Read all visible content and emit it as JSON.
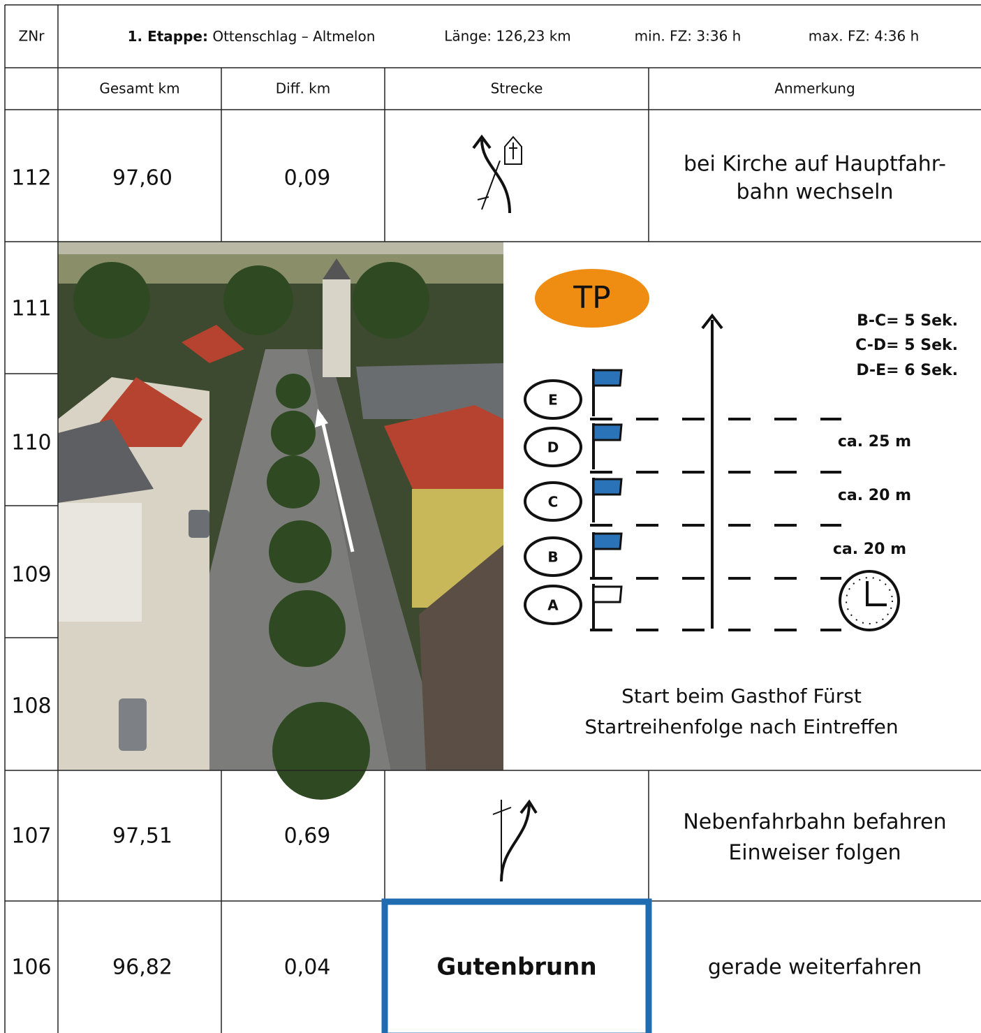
{
  "header": {
    "znr": "ZNr",
    "stage_label": "1. Etappe:",
    "stage_route": "Ottenschlag – Altmelon",
    "length": "Länge: 126,23 km",
    "min_fz": "min. FZ: 3:36 h",
    "max_fz": "max. FZ: 4:36 h"
  },
  "columns": [
    "Gesamt km",
    "Diff. km",
    "Strecke",
    "Anmerkung"
  ],
  "rows": [
    {
      "znr": "112",
      "total_km": "97,60",
      "diff_km": "0,09",
      "note": [
        "bei Kirche auf Hauptfahr-",
        "bahn wechseln"
      ]
    },
    {
      "znr": "107",
      "total_km": "97,51",
      "diff_km": "0,69",
      "note": [
        "Nebenfahrbahn befahren",
        "Einweiser folgen"
      ]
    },
    {
      "znr": "106",
      "total_km": "96,82",
      "diff_km": "0,04",
      "route": "Gutenbrunn",
      "note": [
        "gerade weiterfahren"
      ]
    }
  ],
  "photo_rows": [
    "111",
    "110",
    "109",
    "108"
  ],
  "diagram": {
    "badge": "TP",
    "flags": [
      "E",
      "D",
      "C",
      "B",
      "A"
    ],
    "timings": [
      "B-C= 5 Sek.",
      "C-D= 5 Sek.",
      "D-E= 6 Sek."
    ],
    "distances": [
      "ca. 25 m",
      "ca. 20 m",
      "ca. 20 m"
    ],
    "notes": [
      "Start beim Gasthof Fürst",
      "Startreihenfolge nach Eintreffen"
    ]
  }
}
